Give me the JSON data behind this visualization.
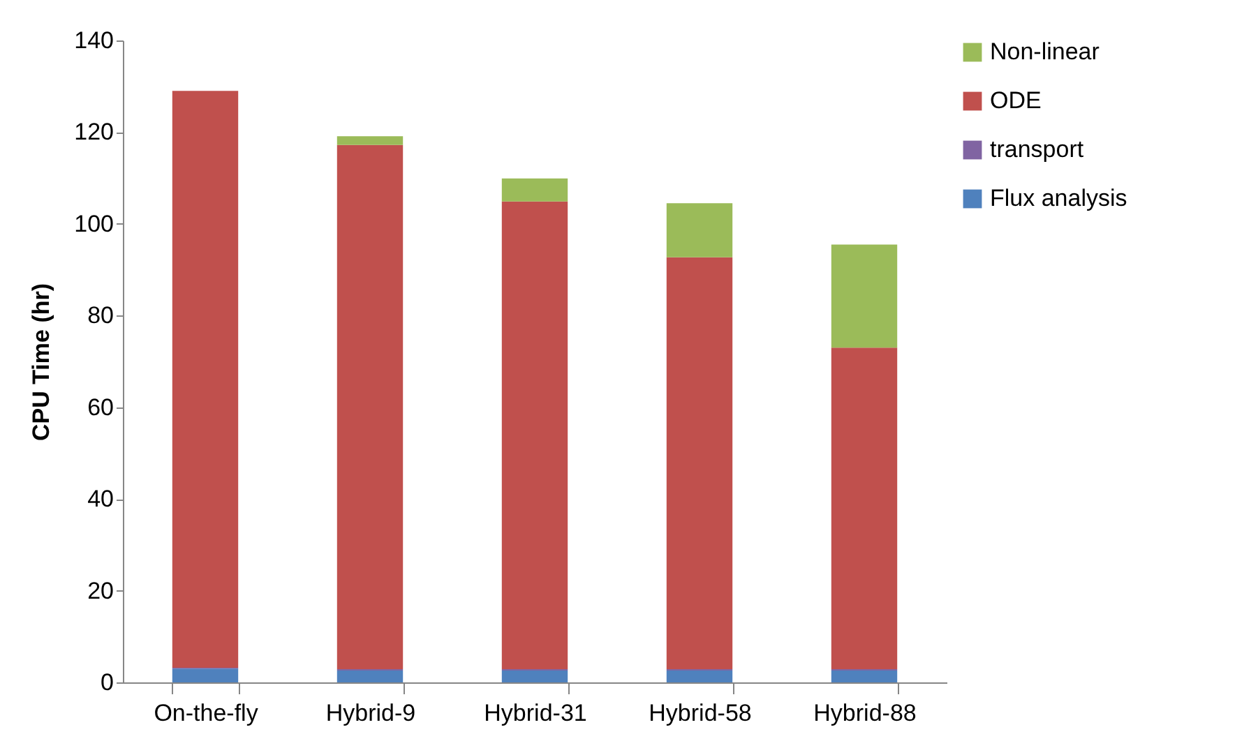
{
  "chart_data": {
    "type": "bar",
    "stacked": true,
    "ylabel": "CPU Time (hr)",
    "categories": [
      "On-the-fly",
      "Hybrid-9",
      "Hybrid-31",
      "Hybrid-58",
      "Hybrid-88"
    ],
    "series": [
      {
        "name": "Flux analysis",
        "color": "#4f81bd",
        "values": [
          3,
          2.6,
          2.6,
          2.6,
          2.6
        ]
      },
      {
        "name": "transport",
        "color": "#8064a2",
        "values": [
          0.2,
          0.3,
          0.3,
          0.3,
          0.3
        ]
      },
      {
        "name": "ODE",
        "color": "#c0504d",
        "values": [
          125.8,
          114.3,
          102,
          89.8,
          70.1
        ]
      },
      {
        "name": "Non-linear",
        "color": "#9bbb59",
        "values": [
          0,
          1.9,
          5,
          11.8,
          22.5
        ]
      }
    ],
    "ylim": [
      0,
      140
    ],
    "yticks": [
      0,
      20,
      40,
      60,
      80,
      100,
      120,
      140
    ],
    "grid": false,
    "legend": "right"
  }
}
